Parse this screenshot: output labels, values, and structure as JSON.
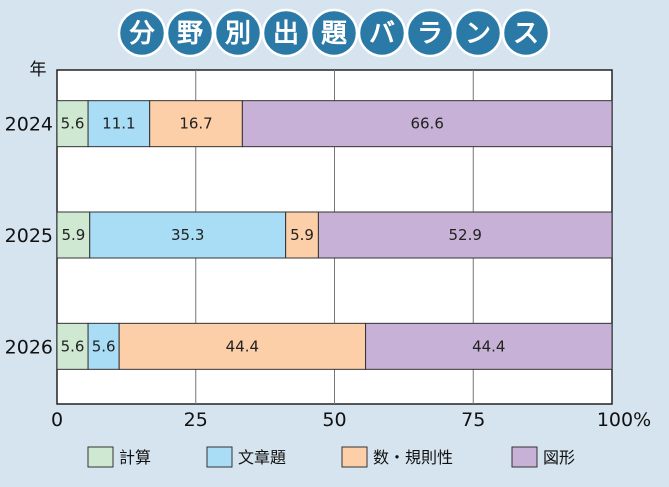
{
  "chart_data": {
    "type": "bar",
    "orientation": "horizontal",
    "stacked": true,
    "title": "分野別出題バランス",
    "ylabel": "年",
    "categories": [
      "2024",
      "2025",
      "2026"
    ],
    "xlim": [
      0,
      100
    ],
    "x_ticks": [
      "0",
      "25",
      "50",
      "75",
      "100%"
    ],
    "grid": true,
    "legend_position": "bottom",
    "series": [
      {
        "name": "計算",
        "color": "#cfe8d2",
        "values": [
          5.6,
          5.9,
          5.6
        ],
        "labels": [
          "5.6",
          "5.9",
          "5.6"
        ]
      },
      {
        "name": "文章題",
        "color": "#a9dcf5",
        "values": [
          11.1,
          35.3,
          5.6
        ],
        "labels": [
          "11.1",
          "35.3",
          "5.6"
        ]
      },
      {
        "name": "数・規則性",
        "color": "#fdcfa9",
        "values": [
          16.7,
          5.9,
          44.4
        ],
        "labels": [
          "16.7",
          "5.9",
          "44.4"
        ]
      },
      {
        "name": "図形",
        "color": "#c7b1d6",
        "values": [
          66.6,
          52.9,
          44.4
        ],
        "labels": [
          "66.6",
          "52.9",
          "44.4"
        ]
      }
    ]
  }
}
